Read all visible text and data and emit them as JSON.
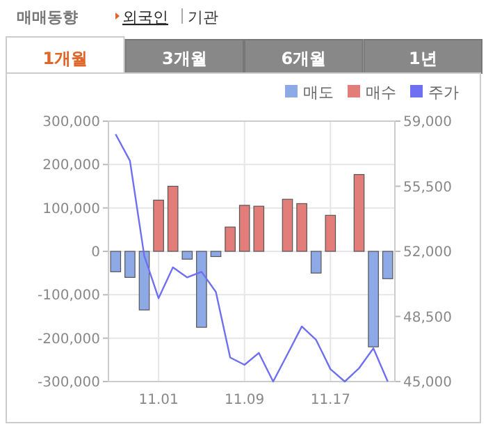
{
  "chart_data": {
    "type": "bar",
    "title": "매매동향",
    "annotations": [
      "외국인",
      "기관",
      "1개월",
      "3개월",
      "6개월",
      "1년"
    ],
    "categories": [
      null,
      null,
      null,
      "11.01",
      null,
      null,
      null,
      null,
      null,
      "11.09",
      null,
      null,
      null,
      null,
      null,
      "11.17",
      null,
      null,
      null,
      null
    ],
    "series": [
      {
        "name": "매도",
        "color": "#8eaae6",
        "values": [
          -47000,
          -60000,
          -135000,
          0,
          0,
          -18000,
          -175000,
          -12000,
          0,
          0,
          0,
          0,
          0,
          0,
          -50000,
          0,
          0,
          0,
          -220000,
          -63000
        ]
      },
      {
        "name": "매수",
        "color": "#e27d7a",
        "values": [
          0,
          0,
          0,
          118000,
          150000,
          0,
          0,
          0,
          56000,
          106000,
          104000,
          0,
          120000,
          110000,
          0,
          83000,
          0,
          177000,
          0,
          0
        ]
      },
      {
        "name": "주가",
        "type": "line",
        "axis": "y2",
        "color": "#6f6ff2",
        "values": [
          58300,
          56870,
          51760,
          49480,
          51140,
          50600,
          50900,
          49820,
          46290,
          45900,
          46540,
          45000,
          46470,
          47960,
          47240,
          45670,
          45000,
          45720,
          46790,
          45000
        ]
      }
    ],
    "ylim": [
      -300000,
      300000
    ],
    "yticks": [
      {
        "value": -300000,
        "label": "-300,000"
      },
      {
        "value": -200000,
        "label": "-200,000"
      },
      {
        "value": -100000,
        "label": "-100,000"
      },
      0,
      {
        "value": 100000,
        "label": "100,000"
      },
      {
        "value": 200000,
        "label": "200,000"
      },
      {
        "value": 300000,
        "label": "300,000"
      }
    ],
    "y2lim": [
      45000,
      59000
    ],
    "y2ticks": [
      {
        "value": 45000,
        "label": "45,000"
      },
      {
        "value": 48500,
        "label": "48,500"
      },
      {
        "value": 52000,
        "label": "52,000"
      },
      {
        "value": 55500,
        "label": "55,500"
      },
      {
        "value": 59000,
        "label": "59,000"
      }
    ],
    "grid": true,
    "legend": "top right"
  }
}
